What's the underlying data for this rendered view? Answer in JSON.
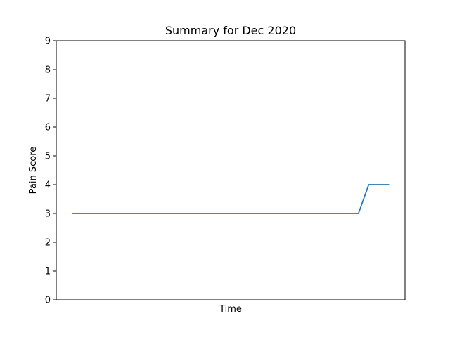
{
  "chart_data": {
    "type": "line",
    "title": "Summary for Dec 2020",
    "xlabel": "Time",
    "ylabel": "Pain Score",
    "ylim": [
      0,
      9
    ],
    "yticks": [
      0,
      1,
      2,
      3,
      4,
      5,
      6,
      7,
      8,
      9
    ],
    "xticks": [],
    "grid": false,
    "x": [
      0,
      28,
      29,
      31
    ],
    "series": [
      {
        "values": [
          3,
          3,
          4,
          4
        ],
        "color": "#1f77b4"
      }
    ]
  }
}
